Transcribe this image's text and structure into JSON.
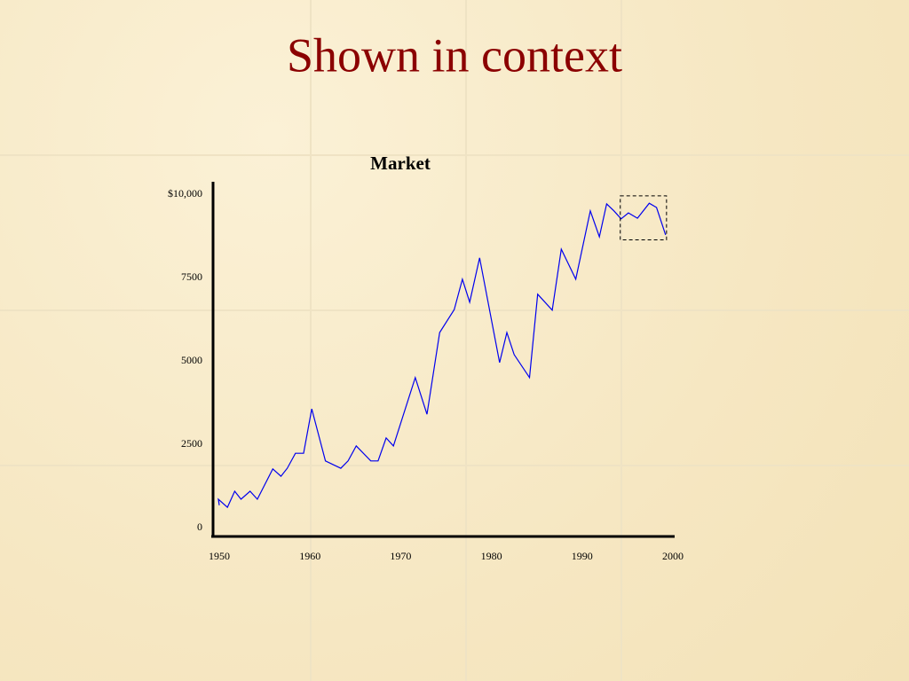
{
  "chart_data": {
    "type": "line",
    "title": "Shown in context",
    "subtitle": "Market",
    "x": [
      1950,
      1949.9,
      1950.9,
      1951.7,
      1952.4,
      1953.4,
      1954.2,
      1955.9,
      1956.8,
      1957.5,
      1958.4,
      1959.3,
      1960.2,
      1961.7,
      1963.4,
      1964.2,
      1965.1,
      1966.7,
      1967.5,
      1968.4,
      1969.2,
      1971.6,
      1972.9,
      1974.3,
      1975.9,
      1976.8,
      1977.6,
      1978.7,
      1980.9,
      1981.7,
      1982.5,
      1984.2,
      1985.1,
      1986.7,
      1987.7,
      1989.3,
      1990.9,
      1991.9,
      1992.7,
      1993.5,
      1994.3,
      1995.1,
      1996.1,
      1997.4,
      1998.2,
      1999.2
    ],
    "series": [
      {
        "color": "#0000ee",
        "values": [
          670,
          850,
          610,
          1090,
          850,
          1090,
          850,
          1760,
          1540,
          1780,
          2230,
          2230,
          3560,
          2000,
          1780,
          2000,
          2450,
          2000,
          2000,
          2690,
          2450,
          4500,
          3400,
          5850,
          6540,
          7450,
          6760,
          8090,
          4950,
          5850,
          5190,
          4500,
          7000,
          6520,
          8350,
          7450,
          9500,
          8720,
          9710,
          9500,
          9260,
          9440,
          9280,
          9730,
          9600,
          8780
        ]
      }
    ],
    "xlim": [
      1950,
      2000
    ],
    "xticks": [
      1950,
      1960,
      1970,
      1980,
      1990,
      2000
    ],
    "ylim": [
      0,
      10000
    ],
    "yticks": [
      0,
      2500,
      5000,
      7500,
      {
        "value": 10000,
        "label": "$10,000"
      }
    ],
    "highlight": {
      "x": [
        1994.2,
        1999.3
      ],
      "y": [
        8630,
        9950
      ]
    }
  }
}
